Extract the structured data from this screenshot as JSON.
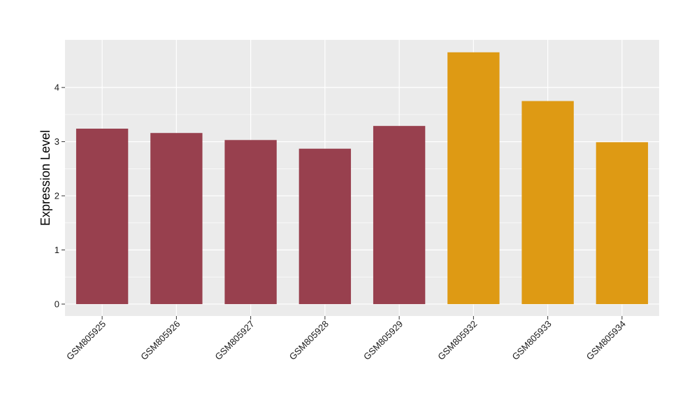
{
  "chart_data": {
    "type": "bar",
    "title": "",
    "xlabel": "",
    "ylabel": "Expression Level",
    "categories": [
      "GSM805925",
      "GSM805926",
      "GSM805927",
      "GSM805928",
      "GSM805929",
      "GSM805932",
      "GSM805933",
      "GSM805934"
    ],
    "values": [
      3.24,
      3.16,
      3.03,
      2.87,
      3.29,
      4.65,
      3.75,
      2.99
    ],
    "bar_colors": [
      "#98404e",
      "#98404e",
      "#98404e",
      "#98404e",
      "#98404e",
      "#de9a14",
      "#de9a14",
      "#de9a14"
    ],
    "yticks": [
      0,
      1,
      2,
      3,
      4
    ],
    "ylim": [
      -0.22,
      4.88
    ],
    "grid": true,
    "legend": "none",
    "panel_background": "#ebebeb",
    "grid_color": "#ffffff"
  }
}
